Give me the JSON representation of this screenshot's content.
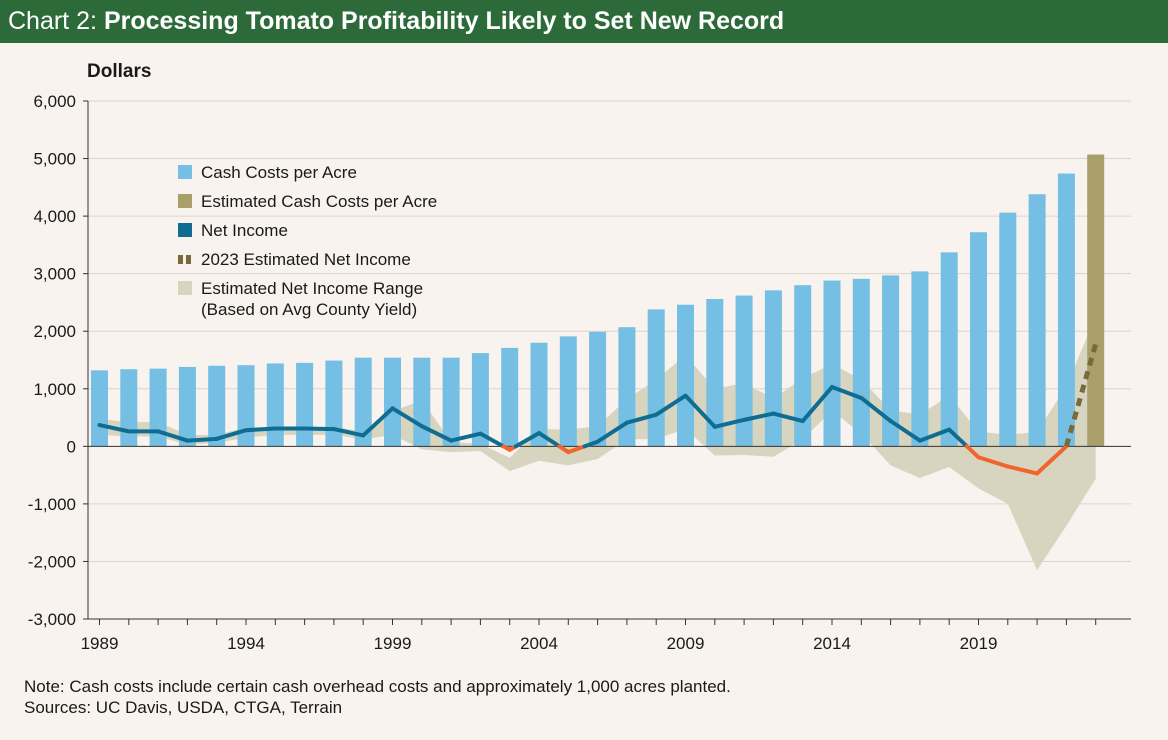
{
  "header": {
    "prefix": "Chart 2:",
    "title": "Processing Tomato Profitability Likely to Set New Record"
  },
  "colors": {
    "title_bg": "#2d6a3a",
    "cash_costs": "#74bfe3",
    "estimated_cash_costs": "#a89f6b",
    "net_income": "#0e6d91",
    "net_income_negative": "#f1642b",
    "estimated_net_income": "#7a6a3a",
    "range": "#d7d4bf"
  },
  "footer": {
    "note": "Note: Cash costs include certain cash overhead costs and approximately 1,000 acres planted.",
    "sources": "Sources: UC Davis, USDA, CTGA, Terrain"
  },
  "chart_data": {
    "type": "bar",
    "title": "Processing Tomato Profitability Likely to Set New Record",
    "ylabel": "Dollars",
    "xlabel": "",
    "ylim": [
      -3000,
      6000
    ],
    "y_ticks": [
      6000,
      5000,
      4000,
      3000,
      2000,
      1000,
      0,
      -1000,
      -2000,
      -3000
    ],
    "y_tick_labels": [
      "6,000",
      "5,000",
      "4,000",
      "3,000",
      "2,000",
      "1,000",
      "0",
      "-1,000",
      "-2,000",
      "-3,000"
    ],
    "x_tick_labels": [
      "1989",
      "1994",
      "1999",
      "2004",
      "2009",
      "2014",
      "2019"
    ],
    "categories": [
      1989,
      1990,
      1991,
      1992,
      1993,
      1994,
      1995,
      1996,
      1997,
      1998,
      1999,
      2000,
      2001,
      2002,
      2003,
      2004,
      2005,
      2006,
      2007,
      2008,
      2009,
      2010,
      2011,
      2012,
      2013,
      2014,
      2015,
      2016,
      2017,
      2018,
      2019,
      2020,
      2021,
      2022,
      2023
    ],
    "legend": [
      "Cash Costs per Acre",
      "Estimated Cash Costs per Acre",
      "Net Income",
      "2023 Estimated Net Income",
      "Estimated Net Income Range",
      "(Based on Avg County Yield)"
    ],
    "series": [
      {
        "name": "Cash Costs per Acre",
        "type": "bar",
        "values": [
          1320,
          1340,
          1350,
          1380,
          1400,
          1410,
          1440,
          1450,
          1490,
          1540,
          1540,
          1540,
          1540,
          1620,
          1710,
          1800,
          1910,
          1990,
          2070,
          2380,
          2460,
          2560,
          2620,
          2710,
          2800,
          2880,
          2910,
          2970,
          3040,
          3370,
          3720,
          4060,
          4380,
          4740,
          null
        ]
      },
      {
        "name": "Estimated Cash Costs per Acre",
        "type": "bar",
        "values": [
          null,
          null,
          null,
          null,
          null,
          null,
          null,
          null,
          null,
          null,
          null,
          null,
          null,
          null,
          null,
          null,
          null,
          null,
          null,
          null,
          null,
          null,
          null,
          null,
          null,
          null,
          null,
          null,
          null,
          null,
          null,
          null,
          null,
          null,
          5070
        ]
      },
      {
        "name": "Net Income",
        "type": "line",
        "values": [
          370,
          260,
          260,
          100,
          130,
          280,
          310,
          310,
          300,
          190,
          660,
          350,
          100,
          220,
          -60,
          230,
          -100,
          80,
          410,
          550,
          880,
          340,
          460,
          570,
          440,
          1030,
          840,
          440,
          100,
          290,
          -190,
          -350,
          -470,
          0,
          null
        ]
      },
      {
        "name": "2023 Estimated Net Income",
        "type": "line-dashed",
        "values": [
          null,
          null,
          null,
          null,
          null,
          null,
          null,
          null,
          null,
          null,
          null,
          null,
          null,
          null,
          null,
          null,
          null,
          null,
          null,
          null,
          null,
          null,
          null,
          null,
          null,
          null,
          null,
          null,
          null,
          null,
          null,
          null,
          null,
          0,
          1780
        ]
      },
      {
        "name": "Estimated Net Income Range",
        "type": "area-range",
        "high": [
          480,
          420,
          420,
          200,
          200,
          330,
          330,
          330,
          340,
          260,
          610,
          800,
          80,
          40,
          -200,
          300,
          290,
          350,
          820,
          1160,
          1580,
          1000,
          1100,
          830,
          1180,
          1430,
          1160,
          630,
          550,
          880,
          260,
          200,
          250,
          1050,
          2250
        ],
        "low": [
          200,
          170,
          170,
          30,
          60,
          150,
          200,
          200,
          200,
          120,
          200,
          -50,
          -100,
          -80,
          -430,
          -250,
          -330,
          -220,
          120,
          130,
          300,
          -160,
          -150,
          -180,
          120,
          620,
          220,
          -330,
          -550,
          -360,
          -730,
          -1000,
          -2150,
          -1380,
          -560
        ]
      }
    ]
  }
}
